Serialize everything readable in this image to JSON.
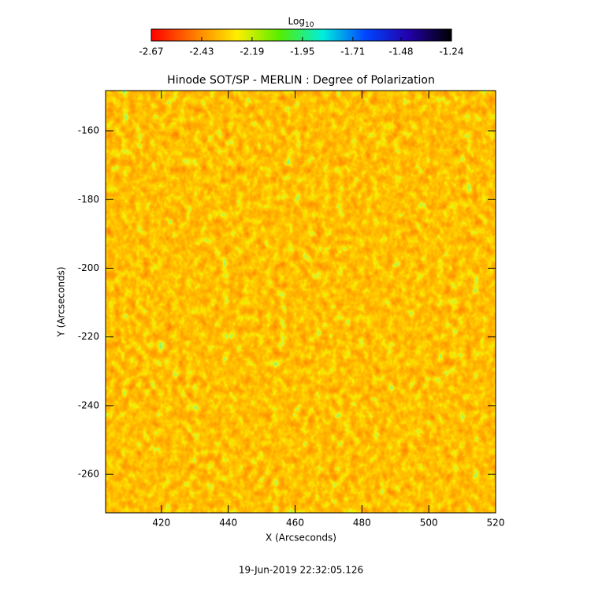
{
  "chart_data": {
    "type": "heatmap",
    "title": "Hinode SOT/SP - MERLIN : Degree of Polarization",
    "xlabel": "X (Arcseconds)",
    "ylabel": "Y (Arcseconds)",
    "colorbar_label": "Log",
    "colorbar_label_subscript": "10",
    "colorbar_lim": [
      -2.67,
      -1.24
    ],
    "colorbar_ticks": [
      -2.67,
      -2.43,
      -2.19,
      -1.95,
      -1.71,
      -1.48,
      -1.24
    ],
    "colormap": [
      "#ff0000",
      "#ff7a00",
      "#ffee00",
      "#55ee00",
      "#00eedd",
      "#0044ff",
      "#2200aa",
      "#000000"
    ],
    "xlim": [
      403.3,
      520
    ],
    "xticks": [
      420,
      440,
      460,
      480,
      500,
      520
    ],
    "ylim": [
      -271.2,
      -148.3
    ],
    "yticks": [
      -260,
      -240,
      -220,
      -200,
      -180,
      -160
    ],
    "footer": "19-Jun-2019 22:32:05.126"
  }
}
